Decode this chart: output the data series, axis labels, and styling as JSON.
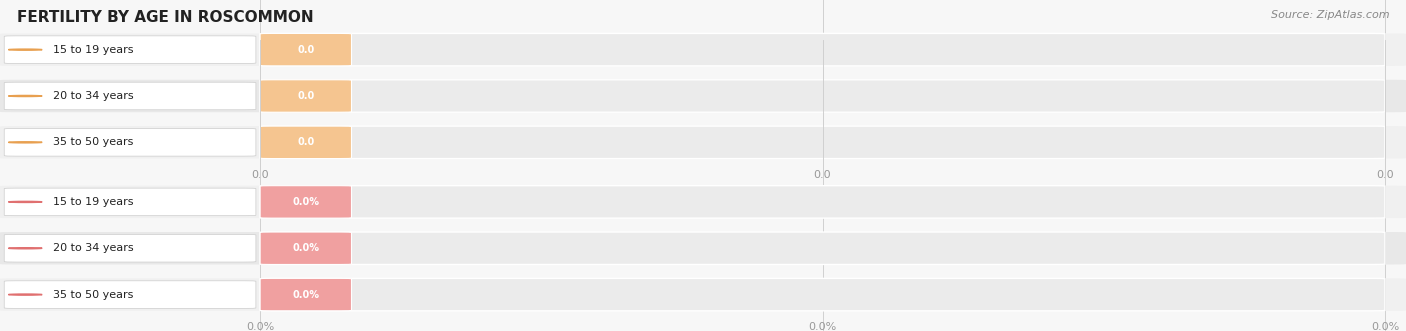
{
  "title": "FERTILITY BY AGE IN ROSCOMMON",
  "source": "Source: ZipAtlas.com",
  "sections": [
    {
      "labels": [
        "15 to 19 years",
        "20 to 34 years",
        "35 to 50 years"
      ],
      "values": [
        0.0,
        0.0,
        0.0
      ],
      "bar_track_color": "#ebebeb",
      "fill_color": "#f5c590",
      "circle_color": "#e8a050",
      "value_bg_color": "#f5c590",
      "suffix": "",
      "tick_labels": [
        "0.0",
        "0.0",
        "0.0"
      ]
    },
    {
      "labels": [
        "15 to 19 years",
        "20 to 34 years",
        "35 to 50 years"
      ],
      "values": [
        0.0,
        0.0,
        0.0
      ],
      "bar_track_color": "#ebebeb",
      "fill_color": "#f0a0a0",
      "circle_color": "#e07070",
      "value_bg_color": "#f0a0a0",
      "suffix": "%",
      "tick_labels": [
        "0.0%",
        "0.0%",
        "0.0%"
      ]
    }
  ],
  "fig_bg": "#f7f7f7",
  "row_colors": [
    "#f0f0f0",
    "#e8e8e8"
  ],
  "title_color": "#222222",
  "source_color": "#888888",
  "label_color": "#222222",
  "tick_color": "#999999",
  "grid_color": "#d0d0d0",
  "white": "#ffffff"
}
